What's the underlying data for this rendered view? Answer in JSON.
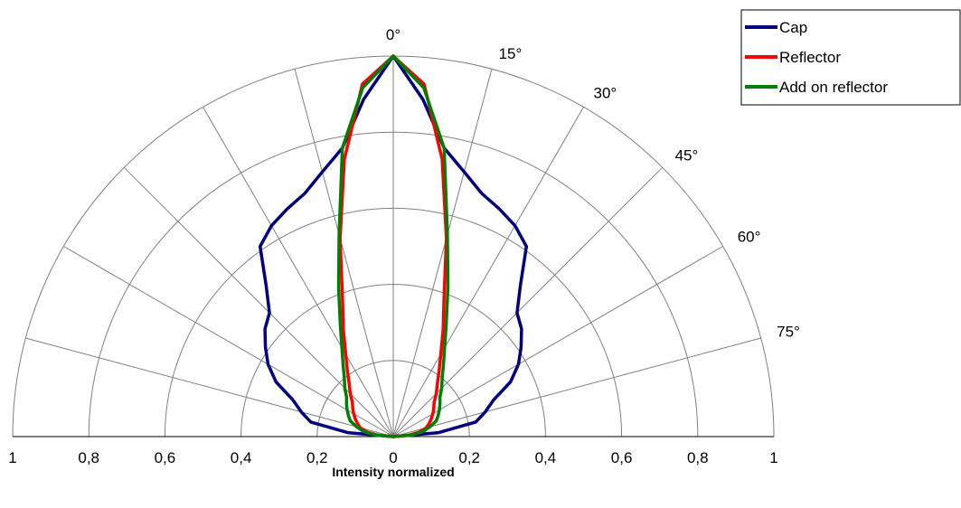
{
  "chart_data": {
    "type": "line",
    "subtype": "polar-half",
    "xlabel": "Intensity normalized",
    "radial_range": [
      0,
      1
    ],
    "radial_ticks": [
      0,
      0.2,
      0.4,
      0.6,
      0.8,
      1
    ],
    "radial_tick_labels_left": [
      "1",
      "0,8",
      "0,6",
      "0,4",
      "0,2",
      "0"
    ],
    "radial_tick_labels_right": [
      "0,2",
      "0,4",
      "0,6",
      "0,8",
      "1"
    ],
    "angle_range_deg": [
      -90,
      90
    ],
    "angle_step_deg": 15,
    "angle_labels": [
      "0°",
      "15°",
      "30°",
      "45°",
      "60°",
      "75°"
    ],
    "angle_label_values": [
      0,
      15,
      30,
      45,
      60,
      75
    ],
    "grid": true,
    "legend_position": "top-right",
    "angles_deg": [
      0,
      5,
      10,
      15,
      20,
      25,
      30,
      35,
      40,
      45,
      50,
      55,
      60,
      65,
      70,
      75,
      80,
      85,
      90
    ],
    "series": [
      {
        "name": "Cap",
        "color": "#000080",
        "values": [
          1.0,
          0.89,
          0.77,
          0.72,
          0.68,
          0.66,
          0.64,
          0.61,
          0.52,
          0.46,
          0.44,
          0.41,
          0.38,
          0.34,
          0.28,
          0.25,
          0.22,
          0.12,
          0.0
        ]
      },
      {
        "name": "Reflector",
        "color": "#ff0000",
        "values": [
          1.0,
          0.93,
          0.74,
          0.54,
          0.39,
          0.31,
          0.25,
          0.21,
          0.18,
          0.16,
          0.14,
          0.13,
          0.12,
          0.11,
          0.1,
          0.09,
          0.07,
          0.04,
          0.0
        ]
      },
      {
        "name": "Add on reflector",
        "color": "#008000",
        "values": [
          1.0,
          0.92,
          0.77,
          0.55,
          0.42,
          0.33,
          0.27,
          0.23,
          0.2,
          0.18,
          0.16,
          0.15,
          0.14,
          0.13,
          0.12,
          0.1,
          0.08,
          0.05,
          0.0
        ]
      }
    ]
  }
}
